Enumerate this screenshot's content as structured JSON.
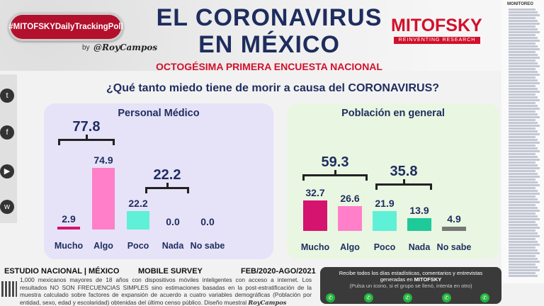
{
  "header": {
    "hashtag": "#MITOFSKYDailyTrackingPoll",
    "by": "by",
    "author": "@RoyCampos",
    "title_line1": "EL CORONAVIRUS",
    "title_line2": "EN MÉXICO",
    "subtitle": "OCTOGÉSIMA PRIMERA ENCUESTA NACIONAL",
    "brand": "MITOFSKY",
    "brand_tagline": "REINVENTING RESEARCH"
  },
  "question": "¿Qué tanto miedo tiene de morir a causa del CORONAVIRUS?",
  "social": [
    "twitter-icon",
    "facebook-icon",
    "youtube-icon",
    "web-icon"
  ],
  "monitor": {
    "title": "MONITOREO"
  },
  "chart_data": [
    {
      "type": "bar",
      "title": "Personal Médico",
      "categories": [
        "Mucho",
        "Algo",
        "Poco",
        "Nada",
        "No sabe"
      ],
      "values": [
        2.9,
        74.9,
        22.2,
        0.0,
        0.0
      ],
      "colors": [
        "#d4146e",
        "#ff7fc8",
        "#5ff0d8",
        "#1ec99a",
        "#777777"
      ],
      "groups": [
        {
          "label": "77.8",
          "span": [
            "Mucho",
            "Algo"
          ]
        },
        {
          "label": "22.2",
          "span": [
            "Poco",
            "Nada"
          ]
        }
      ]
    },
    {
      "type": "bar",
      "title": "Población en general",
      "categories": [
        "Mucho",
        "Algo",
        "Poco",
        "Nada",
        "No sabe"
      ],
      "values": [
        32.7,
        26.6,
        21.9,
        13.9,
        4.9
      ],
      "colors": [
        "#d4146e",
        "#ff7fc8",
        "#5ff0d8",
        "#1ec99a",
        "#777777"
      ],
      "groups": [
        {
          "label": "59.3",
          "span": [
            "Mucho",
            "Algo"
          ]
        },
        {
          "label": "35.8",
          "span": [
            "Poco",
            "Nada"
          ]
        }
      ]
    }
  ],
  "footer": {
    "study": "ESTUDIO NACIONAL | MÉXICO",
    "survey": "MOBILE SURVEY",
    "period": "FEB/2020-AGO/2021",
    "methodology": "1,000 mexicanos mayores de 18 años con dispositivos móviles inteligentes con acceso a internet. Los resultados NO SON FRECUENCIAS SIMPLES sino estimaciones basadas en la post-estratificación de la muestra calculado sobre factores de expansión de acuerdo a cuatro variables demográficas (Población por entidad, sexo, edad y escolaridad) obtenidas del último censo público. Diseño muestral",
    "designer": "RoyCampos"
  },
  "whatsapp": {
    "line1": "Recibe todos los días estadísticas, comentarios y entrevistas",
    "line2": "generadas en",
    "brand": "MITOFSKY",
    "note": "(Pulsa un icono, si el grupo se llenó, intenta en otro)"
  }
}
